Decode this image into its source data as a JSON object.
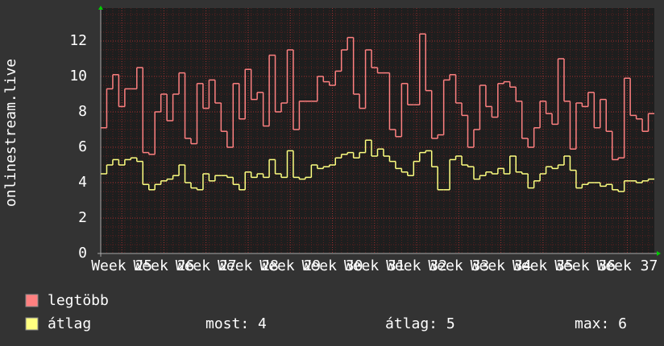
{
  "chart_data": {
    "type": "step",
    "ylabel": "onlinestream.live",
    "xlim": [
      0,
      92
    ],
    "ylim": [
      0,
      14
    ],
    "yticks": [
      0,
      2,
      4,
      6,
      8,
      10,
      12
    ],
    "xticks": [
      {
        "value": 3.5,
        "label": "Week 25"
      },
      {
        "value": 10.5,
        "label": "Week 26"
      },
      {
        "value": 17.5,
        "label": "Week 27"
      },
      {
        "value": 24.5,
        "label": "Week 28"
      },
      {
        "value": 31.5,
        "label": "Week 29"
      },
      {
        "value": 38.5,
        "label": "Week 30"
      },
      {
        "value": 45.5,
        "label": "Week 31"
      },
      {
        "value": 52.5,
        "label": "Week 32"
      },
      {
        "value": 59.5,
        "label": "Week 33"
      },
      {
        "value": 66.5,
        "label": "Week 34"
      },
      {
        "value": 73.5,
        "label": "Week 35"
      },
      {
        "value": 80.5,
        "label": "Week 36"
      },
      {
        "value": 87.5,
        "label": "Week 37"
      }
    ],
    "grid": true,
    "series": [
      {
        "name": "legtöbb",
        "color": "#ff8080",
        "values": [
          7.1,
          9.3,
          10.1,
          8.3,
          9.3,
          9.3,
          10.5,
          5.7,
          5.6,
          8,
          9,
          7.5,
          9,
          10.2,
          6.5,
          6.2,
          9.6,
          8.2,
          9.8,
          8.5,
          6.9,
          6,
          9.6,
          7.6,
          10.4,
          8.7,
          9.1,
          7.2,
          11.2,
          8,
          8.5,
          11.5,
          7,
          8.6,
          8.6,
          8.6,
          10,
          9.7,
          9.5,
          10.3,
          11.5,
          12.2,
          9,
          8.2,
          11.5,
          10.5,
          10.2,
          10.2,
          7,
          6.6,
          9.6,
          8.4,
          8.4,
          12.4,
          9.2,
          6.5,
          6.7,
          9.8,
          10.1,
          8.5,
          7.8,
          6,
          7,
          9.5,
          8.3,
          7.7,
          9.6,
          9.7,
          9.4,
          8.6,
          6.5,
          6,
          7.1,
          8.6,
          7.9,
          7.3,
          11,
          8.6,
          5.9,
          8.5,
          8.3,
          9.1,
          7.1,
          8.7,
          6.9,
          5.3,
          5.4,
          9.9,
          7.8,
          7.6,
          6.9,
          7.9
        ]
      },
      {
        "name": "átlag",
        "color": "#ffff80",
        "values": [
          4.5,
          5,
          5.3,
          5,
          5.3,
          5.4,
          5.2,
          3.9,
          3.6,
          3.9,
          4.1,
          4.2,
          4.4,
          5,
          4,
          3.7,
          3.6,
          4.5,
          4.1,
          4.4,
          4.4,
          4.3,
          3.9,
          3.6,
          4.6,
          4.3,
          4.5,
          4.3,
          5.3,
          4.5,
          4.3,
          5.8,
          4.3,
          4.2,
          4.3,
          5,
          4.8,
          4.9,
          5,
          5.4,
          5.6,
          5.7,
          5.4,
          5.7,
          6.4,
          5.5,
          5.9,
          5.5,
          5.2,
          4.8,
          4.6,
          4.4,
          5.2,
          5.7,
          5.8,
          4.9,
          3.6,
          3.6,
          5.3,
          5.5,
          5,
          4.9,
          4.2,
          4.4,
          4.6,
          4.5,
          4.8,
          4.5,
          5.5,
          4.6,
          4.5,
          3.7,
          4.1,
          4.5,
          4.9,
          4.8,
          5,
          5.5,
          4.7,
          3.7,
          3.9,
          4,
          4,
          3.8,
          3.9,
          3.6,
          3.5,
          4.1,
          4.1,
          4,
          4.1,
          4.2
        ]
      }
    ],
    "stats": [
      "most: 4",
      "átlag: 5",
      "max: 6"
    ]
  }
}
